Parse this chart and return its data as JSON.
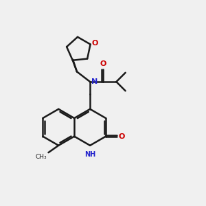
{
  "bg_color": "#f0f0f0",
  "bond_color": "#1a1a1a",
  "N_color": "#2222cc",
  "O_color": "#cc0000",
  "lw": 1.8,
  "fig_size": [
    3.0,
    3.0
  ],
  "dpi": 100,
  "xlim": [
    0,
    10
  ],
  "ylim": [
    0,
    10
  ]
}
